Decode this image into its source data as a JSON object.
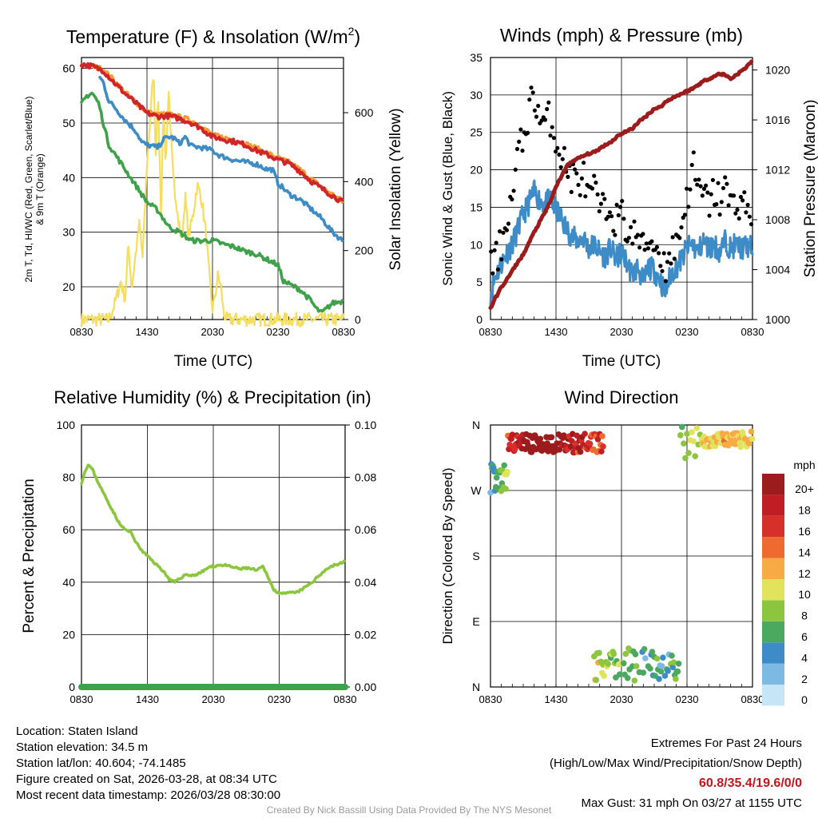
{
  "chart_data": [
    {
      "type": "line",
      "title": "Temperature (F) & Insolation (W/m²)",
      "title_main": "Temperature (F) & Insolation (W/m",
      "title_sup": "2",
      "title_close": ")",
      "xlabel": "Time (UTC)",
      "ylabel_left_line1": "2m T, Td, HI/WC (Red, Green, Scarlet/Blue)",
      "ylabel_left_line2": "& 9m T (Orange)",
      "ylabel_right": "Solar Insolation (Yellow)",
      "xticks": [
        "0830",
        "1430",
        "2030",
        "0230",
        "0830"
      ],
      "ylim_left": [
        14,
        62
      ],
      "yticks_left": [
        20,
        30,
        40,
        50,
        60
      ],
      "ylim_right": [
        0,
        760
      ],
      "yticks_right": [
        0,
        200,
        400,
        600
      ],
      "series": [
        {
          "name": "Insolation",
          "axis": "right",
          "color": "#f5dd5e",
          "x": [
            0,
            2.5,
            3,
            3.6,
            4,
            4.3,
            4.6,
            5,
            5.3,
            5.6,
            5.8,
            6,
            6.3,
            6.6,
            6.8,
            7,
            7.3,
            7.5,
            7.7,
            8,
            8.3,
            8.6,
            8.9,
            9.2,
            9.5,
            9.8,
            10.2,
            10.6,
            11,
            11.4,
            11.8,
            12,
            12.2,
            12.5,
            12.8,
            13,
            13.3,
            14,
            15,
            16,
            18,
            20,
            24
          ],
          "values": [
            0,
            0,
            40,
            110,
            60,
            220,
            90,
            200,
            280,
            180,
            310,
            450,
            580,
            730,
            480,
            660,
            290,
            640,
            430,
            650,
            500,
            340,
            280,
            230,
            360,
            240,
            300,
            390,
            350,
            250,
            90,
            30,
            60,
            130,
            90,
            20,
            0,
            0,
            0,
            0,
            0,
            0,
            0
          ]
        },
        {
          "name": "9m T",
          "axis": "left",
          "color": "#f39c34",
          "x": [
            0,
            1,
            2,
            3,
            4,
            5,
            6,
            7,
            8,
            9,
            10,
            11,
            12,
            13,
            14,
            15,
            16,
            17,
            18,
            19,
            20,
            21,
            22,
            23,
            24
          ],
          "values": [
            60.6,
            60.4,
            59.8,
            57.8,
            55.6,
            53.8,
            52,
            51.5,
            51.6,
            51.1,
            50.5,
            49.4,
            47.8,
            47.3,
            46.9,
            46.2,
            45.4,
            44.5,
            43.6,
            42.8,
            41.5,
            39.8,
            38.2,
            36.9,
            35.5
          ]
        },
        {
          "name": "HI/WC",
          "axis": "left",
          "color": "#3d8cc8",
          "x": [
            0,
            1,
            1.6,
            2,
            2.5,
            3,
            4,
            5,
            5.5,
            6,
            7,
            7.5,
            8,
            8.5,
            9,
            9.5,
            10,
            11,
            12,
            12.5,
            13,
            14,
            15,
            16,
            17,
            17.5,
            18,
            19,
            20,
            21,
            22,
            23,
            24
          ],
          "values": [
            null,
            null,
            58.5,
            57.5,
            54,
            53,
            50.5,
            48.5,
            46.5,
            46,
            45.5,
            47,
            47.5,
            47.2,
            46.2,
            47.5,
            45.8,
            45.5,
            45,
            44.2,
            43.8,
            43.2,
            42.8,
            42.5,
            41.5,
            41.5,
            39,
            37,
            36,
            34.3,
            32.5,
            30,
            28.3
          ]
        },
        {
          "name": "2m T",
          "axis": "left",
          "color": "#d0252a",
          "x": [
            0,
            1,
            2,
            3,
            4,
            5,
            6,
            7,
            8,
            9,
            10,
            11,
            12,
            13,
            14,
            15,
            16,
            17,
            18,
            19,
            20,
            21,
            22,
            23,
            24
          ],
          "values": [
            60.8,
            60.4,
            59.6,
            57.4,
            55.4,
            53.6,
            51.8,
            51.2,
            51.3,
            50.8,
            50.1,
            49,
            47.5,
            47,
            46.6,
            46,
            45,
            44.2,
            43.3,
            42.6,
            41.2,
            39.4,
            38,
            36.7,
            35.4
          ]
        },
        {
          "name": "Td",
          "axis": "left",
          "color": "#3fa14a",
          "x": [
            0,
            0.5,
            1,
            1.6,
            2,
            2.5,
            3,
            4,
            5,
            6,
            7,
            8,
            9,
            10,
            11,
            12,
            13,
            14,
            15,
            16,
            17,
            18,
            18.5,
            19,
            20,
            21,
            21.5,
            22,
            23,
            24
          ],
          "values": [
            53.5,
            55,
            55.5,
            53.5,
            50,
            46,
            44.5,
            41.5,
            38.5,
            35.5,
            34,
            31,
            30,
            28.5,
            28.4,
            28.5,
            27.8,
            27.3,
            26.5,
            26,
            25,
            24,
            21,
            20.5,
            19.5,
            17.5,
            16,
            15.2,
            17,
            17.4
          ]
        }
      ]
    },
    {
      "type": "scatter",
      "title": "Winds (mph) & Pressure (mb)",
      "xlabel": "Time (UTC)",
      "ylabel_left": "Sonic Wind & Gust (Blue, Black)",
      "ylabel_right": "Station Pressure (Maroon)",
      "xticks": [
        "0830",
        "1430",
        "2030",
        "0230",
        "0830"
      ],
      "ylim_left": [
        0,
        35
      ],
      "yticks_left": [
        0,
        5,
        10,
        15,
        20,
        25,
        30,
        35
      ],
      "ylim_right": [
        1000,
        1021
      ],
      "yticks_right": [
        1000,
        1004,
        1008,
        1012,
        1016,
        1020
      ],
      "wind": {
        "color": "#3d8cc8",
        "x": [
          0,
          0.5,
          1,
          1.5,
          2,
          2.5,
          3,
          3.5,
          4,
          4.5,
          5,
          5.5,
          6,
          6.5,
          7,
          7.5,
          8,
          8.5,
          9,
          9.5,
          10,
          10.5,
          11,
          11.5,
          12,
          12.5,
          13,
          13.5,
          14,
          14.5,
          15,
          15.5,
          16,
          16.5,
          17,
          17.5,
          18,
          18.5,
          19,
          19.5,
          20,
          20.5,
          21,
          21.5,
          22,
          22.5,
          23,
          23.5,
          24
        ],
        "values": [
          3.5,
          6,
          7.5,
          9,
          10,
          12,
          14,
          15.5,
          17,
          16,
          15.5,
          16,
          14.5,
          13.5,
          12,
          11,
          10.5,
          11,
          9.5,
          10,
          9,
          8.5,
          9.5,
          8,
          9,
          7.5,
          6,
          7,
          5,
          7,
          6.5,
          5.5,
          3.5,
          6,
          7,
          8,
          9.5,
          10,
          9,
          10.5,
          9.5,
          10,
          9,
          10.5,
          9.5,
          10,
          9.5,
          9.8,
          9.5
        ]
      },
      "gust": {
        "color": "#000000",
        "x": [
          0,
          0.5,
          1,
          1.5,
          2,
          2.5,
          3,
          3.5,
          4,
          4.5,
          5,
          5.5,
          6,
          6.5,
          7,
          7.5,
          8,
          8.5,
          9,
          9.5,
          10,
          10.5,
          11,
          11.5,
          12,
          12.5,
          13,
          13.5,
          14,
          14.5,
          15,
          15.5,
          16,
          16.5,
          17,
          17.5,
          18,
          18.5,
          19,
          19.5,
          20,
          20.5,
          21,
          21.5,
          22,
          22.5,
          23,
          23.5,
          24
        ],
        "values": [
          7,
          8,
          10,
          14,
          16,
          22,
          24,
          28,
          30,
          27,
          26,
          27,
          24,
          22,
          20,
          19,
          18.5,
          19,
          16,
          17,
          15,
          14,
          15.5,
          13,
          14,
          12,
          11,
          11.5,
          9,
          11,
          10,
          9,
          7,
          9,
          10,
          13,
          16,
          21,
          17,
          16.5,
          15.5,
          17,
          16,
          17.5,
          15,
          16,
          15.5,
          15,
          14
        ]
      },
      "pressure": {
        "color": "#9c1c1c",
        "x": [
          0,
          0.5,
          1,
          1.5,
          2,
          2.5,
          3,
          3.5,
          4,
          4.5,
          5,
          5.5,
          6,
          6.5,
          7,
          7.5,
          8,
          8.5,
          9,
          9.5,
          10,
          10.5,
          11,
          11.5,
          12,
          12.5,
          13,
          13.5,
          14,
          14.5,
          15,
          15.5,
          16,
          16.5,
          17,
          17.5,
          18,
          18.5,
          19,
          19.5,
          20,
          20.5,
          21,
          21.5,
          22,
          22.5,
          23,
          23.5,
          24
        ],
        "values": [
          1000.9,
          1001.8,
          1002.6,
          1003.2,
          1003.9,
          1004.6,
          1005.2,
          1006.1,
          1007,
          1007.8,
          1008.6,
          1009.5,
          1010.6,
          1011.5,
          1012.3,
          1012.7,
          1012.9,
          1013.1,
          1013.3,
          1013.4,
          1013.7,
          1014,
          1014.2,
          1014.6,
          1014.9,
          1015.1,
          1015.3,
          1015.8,
          1016.1,
          1016.5,
          1016.9,
          1017,
          1017.4,
          1017.7,
          1017.9,
          1018.1,
          1018.3,
          1018.5,
          1018.8,
          1019.1,
          1019.3,
          1019.5,
          1019.7,
          1019.6,
          1019.3,
          1019.6,
          1019.9,
          1020.3,
          1020.8
        ]
      }
    },
    {
      "type": "line",
      "title": "Relative Humidity (%) & Precipitation (in)",
      "xlabel": "",
      "ylabel_left": "Percent & Precipitation",
      "xticks": [
        "0830",
        "1430",
        "2030",
        "0230",
        "0830"
      ],
      "ylim_left": [
        0,
        100
      ],
      "yticks_left": [
        0,
        20,
        40,
        60,
        80,
        100
      ],
      "ylim_right": [
        0,
        0.1
      ],
      "yticks_right": [
        "0.00",
        "0.02",
        "0.04",
        "0.06",
        "0.08",
        "0.10"
      ],
      "rh": {
        "color": "#8cc63f",
        "x": [
          0,
          0.3,
          0.6,
          1,
          1.3,
          2,
          2.5,
          3,
          3.5,
          4,
          4.5,
          5,
          5.5,
          6,
          6.5,
          7,
          7.5,
          8,
          8.5,
          9,
          9.5,
          10,
          10.5,
          11,
          11.5,
          12,
          12.5,
          13,
          13.5,
          14,
          14.5,
          15,
          15.5,
          16,
          16.5,
          17,
          17.5,
          18,
          18.5,
          19,
          19.5,
          20,
          20.5,
          21,
          21.5,
          22,
          22.5,
          23,
          23.5,
          24
        ],
        "values": [
          78,
          82,
          85,
          83,
          80,
          74,
          70,
          66,
          62,
          60,
          59,
          55,
          52,
          50,
          48,
          46,
          44,
          41,
          40,
          41.5,
          43,
          42.5,
          43,
          44,
          45.5,
          46,
          46.5,
          46.5,
          46,
          45.5,
          45,
          45.5,
          45,
          44.5,
          46,
          42,
          37,
          36,
          35.5,
          36,
          36,
          37,
          38.5,
          40,
          42,
          44,
          45.5,
          46.5,
          47,
          48
        ]
      },
      "precip": {
        "color": "#3fa14a",
        "x": [
          0,
          24
        ],
        "values": [
          0,
          0
        ]
      }
    },
    {
      "type": "scatter",
      "title": "Wind Direction",
      "ylabel_left": "Direction (Colored By Speed)",
      "xticks": [
        "0830",
        "1430",
        "2030",
        "0230",
        "0830"
      ],
      "yticks": [
        "N",
        "E",
        "S",
        "W",
        "N"
      ],
      "ylim": [
        0,
        360
      ],
      "colorbar": {
        "title": "mph",
        "labels": [
          "0",
          "2",
          "4",
          "6",
          "8",
          "10",
          "12",
          "14",
          "16",
          "18",
          "20+"
        ],
        "colors": [
          "#c6e6f7",
          "#7cb9e3",
          "#3d8cc8",
          "#4aa85f",
          "#8cc63f",
          "#e2e35d",
          "#f8aa45",
          "#ef6a2e",
          "#d7302b",
          "#c01d24",
          "#9c1b1c"
        ]
      }
    }
  ],
  "info_left": {
    "location": "Location: Staten Island",
    "elevation": "Station elevation: 34.5 m",
    "latlon": "Station lat/lon: 40.604; -74.1485",
    "created": "Figure created on Sat, 2026-03-28, at 08:34 UTC",
    "recent": "Most recent data timestamp: 2026/03/28 08:30:00"
  },
  "info_right": {
    "extremes_title": "Extremes For Past 24 Hours",
    "extremes_sub": "(High/Low/Max Wind/Precipitation/Snow Depth)",
    "extremes_values": "60.8/35.4/19.6/0/0",
    "max_gust": "Max Gust: 31 mph On 03/27 at 1155 UTC"
  },
  "credit": "Created By Nick Bassill Using Data Provided By The NYS Mesonet"
}
